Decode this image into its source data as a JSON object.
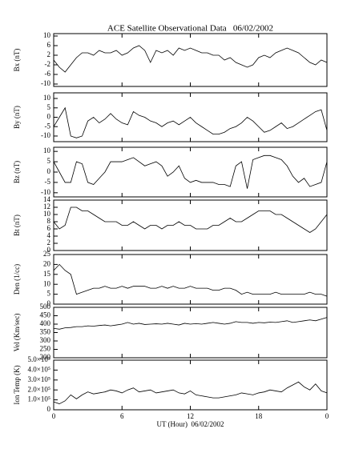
{
  "chart_data": [
    {
      "type": "line",
      "title": "ACE Satellite Observational Data   06/02/2002",
      "ylabel": "Bx (nT)",
      "color": "#000000",
      "x": [
        0,
        0.5,
        1,
        1.5,
        2,
        2.5,
        3,
        3.5,
        4,
        4.5,
        5,
        5.5,
        6,
        6.5,
        7,
        7.5,
        8,
        8.5,
        9,
        9.5,
        10,
        10.5,
        11,
        11.5,
        12,
        12.5,
        13,
        13.5,
        14,
        14.5,
        15,
        15.5,
        16,
        16.5,
        17,
        17.5,
        18,
        18.5,
        19,
        19.5,
        20,
        20.5,
        21,
        21.5,
        22,
        22.5,
        23,
        23.5,
        24
      ],
      "values": [
        0,
        -3,
        -5,
        -2,
        1,
        3,
        3,
        2,
        4,
        3,
        3,
        4,
        2,
        3,
        5,
        6,
        4,
        -1,
        4,
        3,
        4,
        2,
        5,
        4,
        5,
        4,
        3,
        3,
        2,
        2,
        0,
        1,
        -1,
        -2,
        -3,
        -2,
        1,
        2,
        1,
        3,
        4,
        5,
        4,
        3,
        1,
        -1,
        -2,
        0,
        -1
      ],
      "xlim": [
        0,
        24
      ],
      "ylim": [
        -11,
        11
      ],
      "yticks": [
        10,
        6,
        2,
        -2,
        -6,
        -10
      ]
    },
    {
      "type": "line",
      "ylabel": "By (nT)",
      "color": "#000000",
      "x": [
        0,
        0.5,
        1,
        1.5,
        2,
        2.5,
        3,
        3.5,
        4,
        4.5,
        5,
        5.5,
        6,
        6.5,
        7,
        7.5,
        8,
        8.5,
        9,
        9.5,
        10,
        10.5,
        11,
        11.5,
        12,
        12.5,
        13,
        13.5,
        14,
        14.5,
        15,
        15.5,
        16,
        16.5,
        17,
        17.5,
        18,
        18.5,
        19,
        19.5,
        20,
        20.5,
        21,
        21.5,
        22,
        22.5,
        23,
        23.5,
        24
      ],
      "values": [
        -5,
        0,
        5,
        -10,
        -11,
        -10,
        -2,
        0,
        -3,
        -1,
        2,
        -1,
        -3,
        -4,
        3,
        1,
        0,
        -2,
        -3,
        -5,
        -3,
        -2,
        -4,
        -2,
        0,
        -3,
        -5,
        -7,
        -9,
        -9,
        -8,
        -6,
        -5,
        -3,
        0,
        -2,
        -5,
        -8,
        -7,
        -5,
        -3,
        -6,
        -5,
        -3,
        -1,
        1,
        3,
        4,
        -7
      ],
      "xlim": [
        0,
        24
      ],
      "ylim": [
        -13,
        13
      ],
      "yticks": [
        10,
        5,
        0,
        -5,
        -10
      ]
    },
    {
      "type": "line",
      "ylabel": "Bz (nT)",
      "color": "#000000",
      "x": [
        0,
        0.5,
        1,
        1.5,
        2,
        2.5,
        3,
        3.5,
        4,
        4.5,
        5,
        5.5,
        6,
        6.5,
        7,
        7.5,
        8,
        8.5,
        9,
        9.5,
        10,
        10.5,
        11,
        11.5,
        12,
        12.5,
        13,
        13.5,
        14,
        14.5,
        15,
        15.5,
        16,
        16.5,
        17,
        17.5,
        18,
        18.5,
        19,
        19.5,
        20,
        20.5,
        21,
        21.5,
        22,
        22.5,
        23,
        23.5,
        24
      ],
      "values": [
        5,
        0,
        -5,
        -5,
        5,
        4,
        -5,
        -6,
        -3,
        0,
        5,
        5,
        5,
        6,
        7,
        5,
        3,
        4,
        5,
        3,
        -2,
        0,
        3,
        -3,
        -5,
        -4,
        -5,
        -5,
        -5,
        -6,
        -6,
        -7,
        3,
        5,
        -8,
        6,
        7,
        8,
        8,
        7,
        6,
        3,
        -2,
        -5,
        -3,
        -7,
        -6,
        -5,
        5
      ],
      "xlim": [
        0,
        24
      ],
      "ylim": [
        -12,
        12
      ],
      "yticks": [
        10,
        5,
        0,
        -5,
        -10
      ]
    },
    {
      "type": "line",
      "ylabel": "Bt (nT)",
      "color": "#000000",
      "x": [
        0,
        0.5,
        1,
        1.5,
        2,
        2.5,
        3,
        3.5,
        4,
        4.5,
        5,
        5.5,
        6,
        6.5,
        7,
        7.5,
        8,
        8.5,
        9,
        9.5,
        10,
        10.5,
        11,
        11.5,
        12,
        12.5,
        13,
        13.5,
        14,
        14.5,
        15,
        15.5,
        16,
        16.5,
        17,
        17.5,
        18,
        18.5,
        19,
        19.5,
        20,
        20.5,
        21,
        21.5,
        22,
        22.5,
        23,
        23.5,
        24
      ],
      "values": [
        8,
        6,
        7,
        12,
        12,
        11,
        11,
        10,
        9,
        8,
        8,
        8,
        7,
        7,
        8,
        7,
        6,
        7,
        7,
        6,
        7,
        7,
        8,
        7,
        7,
        6,
        6,
        6,
        7,
        7,
        8,
        9,
        8,
        8,
        9,
        10,
        11,
        11,
        11,
        10,
        10,
        9,
        8,
        7,
        6,
        5,
        6,
        8,
        10
      ],
      "xlim": [
        0,
        24
      ],
      "ylim": [
        0,
        14
      ],
      "yticks": [
        14,
        12,
        10,
        8,
        6,
        4,
        2,
        0
      ]
    },
    {
      "type": "line",
      "ylabel": "Den (1/cc)",
      "color": "#000000",
      "x": [
        0,
        0.5,
        1,
        1.5,
        2,
        2.5,
        3,
        3.5,
        4,
        4.5,
        5,
        5.5,
        6,
        6.5,
        7,
        7.5,
        8,
        8.5,
        9,
        9.5,
        10,
        10.5,
        11,
        11.5,
        12,
        12.5,
        13,
        13.5,
        14,
        14.5,
        15,
        15.5,
        16,
        16.5,
        17,
        17.5,
        18,
        18.5,
        19,
        19.5,
        20,
        20.5,
        21,
        21.5,
        22,
        22.5,
        23,
        23.5,
        24
      ],
      "values": [
        17,
        20,
        17,
        15,
        5,
        6,
        7,
        8,
        8,
        9,
        8,
        8,
        9,
        8,
        9,
        9,
        9,
        8,
        8,
        9,
        8,
        9,
        8,
        8,
        9,
        8,
        8,
        8,
        7,
        7,
        8,
        8,
        7,
        5,
        6,
        5,
        5,
        5,
        5,
        6,
        5,
        5,
        5,
        5,
        5,
        6,
        5,
        5,
        4
      ],
      "xlim": [
        0,
        24
      ],
      "ylim": [
        0,
        25
      ],
      "yticks": [
        25,
        20,
        15,
        10,
        5,
        0
      ]
    },
    {
      "type": "line",
      "ylabel": "Vel (Km/sec)",
      "color": "#000000",
      "x": [
        0,
        0.5,
        1,
        1.5,
        2,
        2.5,
        3,
        3.5,
        4,
        4.5,
        5,
        5.5,
        6,
        6.5,
        7,
        7.5,
        8,
        8.5,
        9,
        9.5,
        10,
        10.5,
        11,
        11.5,
        12,
        12.5,
        13,
        13.5,
        14,
        14.5,
        15,
        15.5,
        16,
        16.5,
        17,
        17.5,
        18,
        18.5,
        19,
        19.5,
        20,
        20.5,
        21,
        21.5,
        22,
        22.5,
        23,
        23.5,
        24
      ],
      "values": [
        375,
        370,
        378,
        380,
        385,
        385,
        390,
        388,
        392,
        395,
        390,
        395,
        400,
        410,
        400,
        405,
        398,
        400,
        402,
        400,
        405,
        400,
        395,
        405,
        400,
        403,
        400,
        405,
        410,
        405,
        400,
        405,
        415,
        410,
        410,
        405,
        410,
        408,
        412,
        410,
        415,
        420,
        410,
        415,
        420,
        425,
        420,
        430,
        440
      ],
      "xlim": [
        0,
        24
      ],
      "ylim": [
        200,
        500
      ],
      "yticks": [
        500,
        450,
        400,
        350,
        300,
        250,
        200
      ]
    },
    {
      "type": "line",
      "ylabel": "Ion Temp (K)",
      "xlabel": "UT (Hour)  06/02/2002",
      "color": "#000000",
      "x": [
        0,
        0.5,
        1,
        1.5,
        2,
        2.5,
        3,
        3.5,
        4,
        4.5,
        5,
        5.5,
        6,
        6.5,
        7,
        7.5,
        8,
        8.5,
        9,
        9.5,
        10,
        10.5,
        11,
        11.5,
        12,
        12.5,
        13,
        13.5,
        14,
        14.5,
        15,
        15.5,
        16,
        16.5,
        17,
        17.5,
        18,
        18.5,
        19,
        19.5,
        20,
        20.5,
        21,
        21.5,
        22,
        22.5,
        23,
        23.5,
        24
      ],
      "values": [
        80000,
        60000,
        90000,
        150000,
        110000,
        150000,
        180000,
        160000,
        170000,
        180000,
        200000,
        190000,
        170000,
        200000,
        220000,
        180000,
        190000,
        200000,
        170000,
        180000,
        190000,
        200000,
        170000,
        160000,
        190000,
        150000,
        140000,
        130000,
        120000,
        120000,
        130000,
        140000,
        150000,
        170000,
        160000,
        150000,
        170000,
        180000,
        200000,
        190000,
        180000,
        220000,
        250000,
        280000,
        230000,
        200000,
        260000,
        190000,
        170000
      ],
      "xlim": [
        0,
        24
      ],
      "xticks": [
        0,
        6,
        12,
        18,
        {
          "value": 24,
          "label": "0"
        }
      ],
      "ylim": [
        0,
        500000
      ],
      "yticks": [
        {
          "value": 500000,
          "label": "5.0×10⁵"
        },
        {
          "value": 400000,
          "label": "4.0×10⁵"
        },
        {
          "value": 300000,
          "label": "3.0×10⁵"
        },
        {
          "value": 200000,
          "label": "2.0×10⁵"
        },
        {
          "value": 100000,
          "label": "1.0×10⁵"
        },
        0
      ]
    }
  ]
}
